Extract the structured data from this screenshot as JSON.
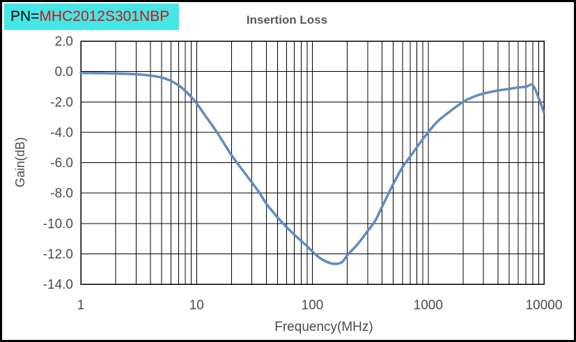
{
  "header": {
    "pn_label_prefix": "PN=",
    "pn_value": "MHC2012S301NBP",
    "pn_prefix_color": "#000000",
    "pn_value_color": "#cc1616",
    "pn_badge_bg": "#45e6e6",
    "title": "Insertion Loss",
    "title_color": "#595959"
  },
  "chart_data": {
    "type": "line",
    "title": "Insertion Loss",
    "xlabel": "Frequency(MHz)",
    "ylabel": "Gain(dB)",
    "x_scale": "log",
    "xlim": [
      1,
      10000
    ],
    "ylim": [
      -14,
      2
    ],
    "x_ticks": [
      1,
      10,
      100,
      1000,
      10000
    ],
    "x_tick_labels": [
      "1",
      "10",
      "100",
      "1000",
      "10000"
    ],
    "y_ticks": [
      2,
      0,
      -2,
      -4,
      -6,
      -8,
      -10,
      -12,
      -14
    ],
    "y_tick_labels": [
      "2.0",
      "0.0",
      "-2.0",
      "-4.0",
      "-6.0",
      "-8.0",
      "-10.0",
      "-12.0",
      "-14.0"
    ],
    "grid": {
      "horizontal": "major",
      "vertical": "log-major-and-minor",
      "color": "#000000"
    },
    "legend": "none",
    "axis_text_color": "#4a4a4a",
    "series": [
      {
        "name": "Insertion Loss",
        "color": "#4f7db8",
        "points": [
          [
            1,
            -0.1
          ],
          [
            1.5,
            -0.11
          ],
          [
            2,
            -0.13
          ],
          [
            3,
            -0.18
          ],
          [
            4,
            -0.27
          ],
          [
            5,
            -0.4
          ],
          [
            6,
            -0.62
          ],
          [
            7,
            -0.92
          ],
          [
            8,
            -1.28
          ],
          [
            9,
            -1.68
          ],
          [
            10,
            -2.1
          ],
          [
            12,
            -2.95
          ],
          [
            15,
            -4.0
          ],
          [
            20,
            -5.5
          ],
          [
            25,
            -6.5
          ],
          [
            30,
            -7.3
          ],
          [
            35,
            -8.0
          ],
          [
            40,
            -8.7
          ],
          [
            50,
            -9.6
          ],
          [
            60,
            -10.25
          ],
          [
            70,
            -10.75
          ],
          [
            80,
            -11.15
          ],
          [
            90,
            -11.5
          ],
          [
            100,
            -11.85
          ],
          [
            120,
            -12.35
          ],
          [
            150,
            -12.65
          ],
          [
            180,
            -12.55
          ],
          [
            200,
            -12.1
          ],
          [
            250,
            -11.3
          ],
          [
            300,
            -10.5
          ],
          [
            350,
            -9.8
          ],
          [
            400,
            -8.9
          ],
          [
            500,
            -7.4
          ],
          [
            600,
            -6.3
          ],
          [
            700,
            -5.6
          ],
          [
            850,
            -4.7
          ],
          [
            1000,
            -4.0
          ],
          [
            1200,
            -3.3
          ],
          [
            1500,
            -2.7
          ],
          [
            2000,
            -2.0
          ],
          [
            2500,
            -1.65
          ],
          [
            3000,
            -1.45
          ],
          [
            4000,
            -1.25
          ],
          [
            5000,
            -1.15
          ],
          [
            6000,
            -1.05
          ],
          [
            7000,
            -1.0
          ],
          [
            8000,
            -0.9
          ],
          [
            9000,
            -1.75
          ],
          [
            10000,
            -2.7
          ]
        ]
      }
    ]
  }
}
